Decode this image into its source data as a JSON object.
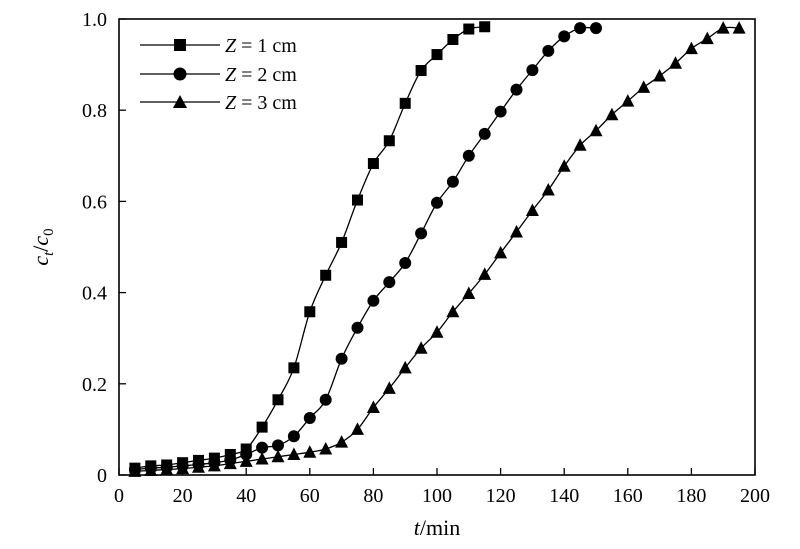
{
  "chart_data": {
    "type": "line",
    "xlabel": {
      "var": "t",
      "unit": "/min"
    },
    "ylabel": {
      "var": "c",
      "sub1": "t",
      "sep": "/",
      "sub2": "0"
    },
    "xlim": [
      0,
      200
    ],
    "ylim": [
      0,
      1.0
    ],
    "xticks": [
      0,
      20,
      40,
      60,
      80,
      100,
      120,
      140,
      160,
      180,
      200
    ],
    "yticks": [
      0,
      0.2,
      0.4,
      0.6,
      0.8,
      1.0
    ],
    "ytick_labels": [
      "0",
      "0.2",
      "0.4",
      "0.6",
      "0.8",
      "1.0"
    ],
    "grid": false,
    "legend_position": "top-left",
    "series": [
      {
        "name": "Z = 1 cm",
        "legend": {
          "var": "Z",
          "rest": " = 1 cm"
        },
        "marker": "square",
        "x": [
          5,
          10,
          15,
          20,
          25,
          30,
          35,
          40,
          45,
          50,
          55,
          60,
          65,
          70,
          75,
          80,
          85,
          90,
          95,
          100,
          105,
          110,
          115
        ],
        "y": [
          0.015,
          0.02,
          0.022,
          0.027,
          0.032,
          0.037,
          0.045,
          0.057,
          0.105,
          0.165,
          0.235,
          0.358,
          0.438,
          0.51,
          0.603,
          0.683,
          0.733,
          0.815,
          0.887,
          0.922,
          0.955,
          0.978,
          0.983
        ]
      },
      {
        "name": "Z = 2 cm",
        "legend": {
          "var": "Z",
          "rest": " = 2 cm"
        },
        "marker": "circle",
        "x": [
          5,
          10,
          15,
          20,
          25,
          30,
          35,
          40,
          45,
          50,
          55,
          60,
          65,
          70,
          75,
          80,
          85,
          90,
          95,
          100,
          105,
          110,
          115,
          120,
          125,
          130,
          135,
          140,
          145,
          150
        ],
        "y": [
          0.012,
          0.015,
          0.017,
          0.02,
          0.023,
          0.027,
          0.033,
          0.045,
          0.06,
          0.065,
          0.085,
          0.125,
          0.165,
          0.255,
          0.323,
          0.382,
          0.423,
          0.465,
          0.53,
          0.597,
          0.643,
          0.7,
          0.748,
          0.797,
          0.845,
          0.888,
          0.93,
          0.962,
          0.98,
          0.98
        ]
      },
      {
        "name": "Z = 3 cm",
        "legend": {
          "var": "Z",
          "rest": " = 3 cm"
        },
        "marker": "triangle",
        "x": [
          5,
          10,
          15,
          20,
          25,
          30,
          35,
          40,
          45,
          50,
          55,
          60,
          65,
          70,
          75,
          80,
          85,
          90,
          95,
          100,
          105,
          110,
          115,
          120,
          125,
          130,
          135,
          140,
          145,
          150,
          155,
          160,
          165,
          170,
          175,
          180,
          185,
          190,
          195
        ],
        "y": [
          0.008,
          0.01,
          0.012,
          0.014,
          0.017,
          0.02,
          0.025,
          0.03,
          0.035,
          0.04,
          0.045,
          0.05,
          0.057,
          0.072,
          0.1,
          0.148,
          0.19,
          0.235,
          0.278,
          0.313,
          0.358,
          0.398,
          0.44,
          0.487,
          0.533,
          0.58,
          0.625,
          0.677,
          0.723,
          0.755,
          0.79,
          0.82,
          0.85,
          0.875,
          0.903,
          0.935,
          0.957,
          0.98,
          0.98
        ]
      }
    ]
  }
}
